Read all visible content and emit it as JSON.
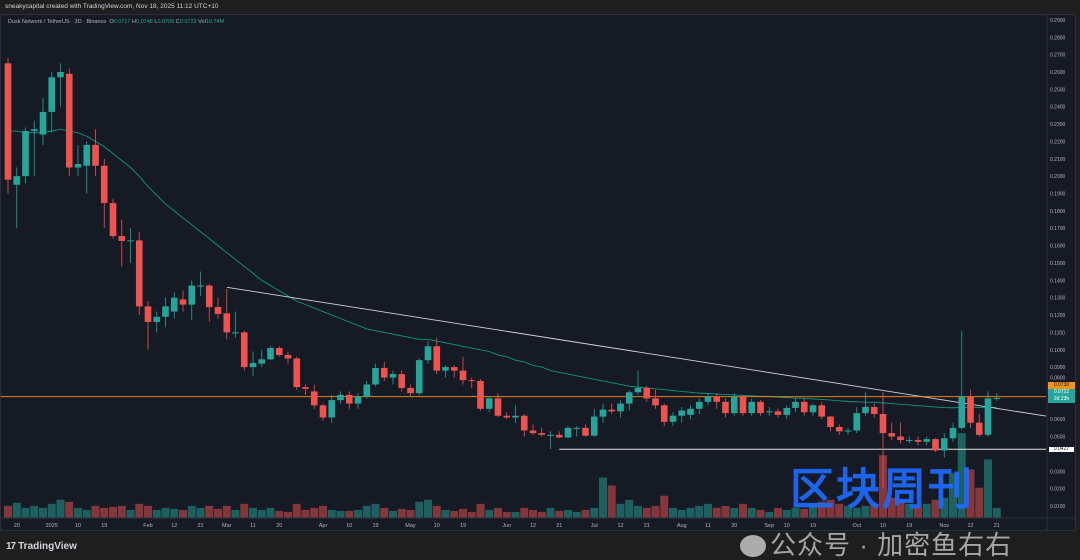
{
  "header": {
    "credit": "sneakycapital created with TradingView.com, Nov 18, 2025 11:12 UTC+10"
  },
  "legend": {
    "symbol": "Dusk Network / TetherUS · 3D · Binance",
    "o_label": "O",
    "o": "0.0717",
    "h_label": "H",
    "h": "0.0748",
    "l_label": "L",
    "l": "0.0706",
    "c_label": "C",
    "c": "0.0722",
    "vol_label": "Vol",
    "vol": "10.74M"
  },
  "price_tags": {
    "level": "0.0730",
    "last": "0.0722",
    "countdown": "2d 23h",
    "support": "0.0427"
  },
  "footer": {
    "brand": "TradingView"
  },
  "watermark": {
    "title": "区块周刊",
    "subtitle": "公众号 · 加密鱼右右"
  },
  "colors": {
    "up": "#26a69a",
    "down": "#ef5350",
    "ema": "#089981",
    "level": "#f7931a",
    "trend": "#d1d4dc",
    "bg": "#161a25"
  },
  "chart_data": {
    "type": "candlestick",
    "title": "Dusk Network / TetherUS · 3D · Binance",
    "ylim": [
      0,
      0.295
    ],
    "y_ticks": [
      "0.2900",
      "0.2800",
      "0.2700",
      "0.2600",
      "0.2500",
      "0.2400",
      "0.2300",
      "0.2200",
      "0.2100",
      "0.2000",
      "0.1900",
      "0.1800",
      "0.1700",
      "0.1600",
      "0.1500",
      "0.1400",
      "0.1300",
      "0.1200",
      "0.1100",
      "0.1000",
      "0.0900",
      "0.0800",
      "0.0600",
      "0.0500",
      "0.0300",
      "0.0200",
      "0.0100"
    ],
    "x_ticks": [
      {
        "i": 1,
        "label": "20"
      },
      {
        "i": 5,
        "label": "2025"
      },
      {
        "i": 8,
        "label": "10"
      },
      {
        "i": 11,
        "label": "19"
      },
      {
        "i": 16,
        "label": "Feb"
      },
      {
        "i": 19,
        "label": "12"
      },
      {
        "i": 22,
        "label": "21"
      },
      {
        "i": 25,
        "label": "Mar"
      },
      {
        "i": 28,
        "label": "11"
      },
      {
        "i": 31,
        "label": "20"
      },
      {
        "i": 36,
        "label": "Apr"
      },
      {
        "i": 39,
        "label": "10"
      },
      {
        "i": 42,
        "label": "19"
      },
      {
        "i": 46,
        "label": "May"
      },
      {
        "i": 49,
        "label": "10"
      },
      {
        "i": 52,
        "label": "19"
      },
      {
        "i": 57,
        "label": "Jun"
      },
      {
        "i": 60,
        "label": "12"
      },
      {
        "i": 63,
        "label": "21"
      },
      {
        "i": 67,
        "label": "Jul"
      },
      {
        "i": 70,
        "label": "12"
      },
      {
        "i": 73,
        "label": "21"
      },
      {
        "i": 77,
        "label": "Aug"
      },
      {
        "i": 80,
        "label": "11"
      },
      {
        "i": 83,
        "label": "20"
      },
      {
        "i": 87,
        "label": "Sep"
      },
      {
        "i": 89,
        "label": "10"
      },
      {
        "i": 92,
        "label": "19"
      },
      {
        "i": 97,
        "label": "Oct"
      },
      {
        "i": 100,
        "label": "10"
      },
      {
        "i": 103,
        "label": "19"
      },
      {
        "i": 107,
        "label": "Nov"
      },
      {
        "i": 110,
        "label": "12"
      },
      {
        "i": 113,
        "label": "21"
      }
    ],
    "ohlc": [
      [
        0.265,
        0.268,
        0.19,
        0.198
      ],
      [
        0.195,
        0.205,
        0.17,
        0.2
      ],
      [
        0.2,
        0.228,
        0.196,
        0.226
      ],
      [
        0.226,
        0.232,
        0.2,
        0.227
      ],
      [
        0.224,
        0.245,
        0.218,
        0.237
      ],
      [
        0.237,
        0.26,
        0.225,
        0.257
      ],
      [
        0.257,
        0.265,
        0.24,
        0.26
      ],
      [
        0.259,
        0.262,
        0.2,
        0.205
      ],
      [
        0.205,
        0.218,
        0.2,
        0.207
      ],
      [
        0.206,
        0.22,
        0.19,
        0.218
      ],
      [
        0.218,
        0.227,
        0.2,
        0.206
      ],
      [
        0.206,
        0.21,
        0.17,
        0.1845
      ],
      [
        0.1845,
        0.187,
        0.164,
        0.1655
      ],
      [
        0.1655,
        0.175,
        0.148,
        0.1627
      ],
      [
        0.163,
        0.17,
        0.15,
        0.163
      ],
      [
        0.163,
        0.168,
        0.12,
        0.125
      ],
      [
        0.125,
        0.128,
        0.1,
        0.116
      ],
      [
        0.116,
        0.122,
        0.11,
        0.119
      ],
      [
        0.119,
        0.13,
        0.113,
        0.125
      ],
      [
        0.122,
        0.133,
        0.118,
        0.13
      ],
      [
        0.129,
        0.134,
        0.122,
        0.126
      ],
      [
        0.126,
        0.14,
        0.117,
        0.137
      ],
      [
        0.137,
        0.145,
        0.131,
        0.137
      ],
      [
        0.137,
        0.138,
        0.116,
        0.1246
      ],
      [
        0.1246,
        0.13,
        0.118,
        0.1206
      ],
      [
        0.121,
        0.135,
        0.106,
        0.11
      ],
      [
        0.11,
        0.122,
        0.107,
        0.11
      ],
      [
        0.11,
        0.111,
        0.088,
        0.09
      ],
      [
        0.09,
        0.099,
        0.085,
        0.0924
      ],
      [
        0.092,
        0.1,
        0.09,
        0.0945
      ],
      [
        0.0945,
        0.102,
        0.094,
        0.101
      ],
      [
        0.101,
        0.102,
        0.096,
        0.097
      ],
      [
        0.097,
        0.099,
        0.092,
        0.095
      ],
      [
        0.095,
        0.096,
        0.077,
        0.0785
      ],
      [
        0.0785,
        0.08,
        0.074,
        0.0775
      ],
      [
        0.076,
        0.08,
        0.066,
        0.068
      ],
      [
        0.068,
        0.069,
        0.059,
        0.061
      ],
      [
        0.061,
        0.074,
        0.058,
        0.071
      ],
      [
        0.071,
        0.076,
        0.069,
        0.074
      ],
      [
        0.074,
        0.076,
        0.066,
        0.069
      ],
      [
        0.069,
        0.075,
        0.066,
        0.073
      ],
      [
        0.073,
        0.082,
        0.072,
        0.08
      ],
      [
        0.08,
        0.092,
        0.079,
        0.0895
      ],
      [
        0.0895,
        0.093,
        0.082,
        0.084
      ],
      [
        0.084,
        0.088,
        0.08,
        0.086
      ],
      [
        0.086,
        0.088,
        0.076,
        0.078
      ],
      [
        0.078,
        0.08,
        0.073,
        0.075
      ],
      [
        0.075,
        0.095,
        0.074,
        0.094
      ],
      [
        0.094,
        0.105,
        0.092,
        0.102
      ],
      [
        0.102,
        0.107,
        0.086,
        0.088
      ],
      [
        0.088,
        0.091,
        0.084,
        0.09
      ],
      [
        0.09,
        0.091,
        0.084,
        0.088
      ],
      [
        0.088,
        0.096,
        0.08,
        0.0825
      ],
      [
        0.0825,
        0.084,
        0.078,
        0.082
      ],
      [
        0.082,
        0.083,
        0.065,
        0.066
      ],
      [
        0.066,
        0.073,
        0.064,
        0.072
      ],
      [
        0.072,
        0.075,
        0.061,
        0.062
      ],
      [
        0.062,
        0.064,
        0.06,
        0.061
      ],
      [
        0.061,
        0.068,
        0.058,
        0.062
      ],
      [
        0.062,
        0.063,
        0.05,
        0.0535
      ],
      [
        0.0535,
        0.057,
        0.051,
        0.052
      ],
      [
        0.052,
        0.055,
        0.05,
        0.051
      ],
      [
        0.051,
        0.053,
        0.0428,
        0.051
      ],
      [
        0.051,
        0.053,
        0.049,
        0.0495
      ],
      [
        0.0495,
        0.056,
        0.049,
        0.055
      ],
      [
        0.055,
        0.056,
        0.05,
        0.055
      ],
      [
        0.055,
        0.057,
        0.05,
        0.0505
      ],
      [
        0.0505,
        0.066,
        0.05,
        0.0615
      ],
      [
        0.0615,
        0.069,
        0.058,
        0.0655
      ],
      [
        0.0655,
        0.069,
        0.063,
        0.0645
      ],
      [
        0.0645,
        0.071,
        0.061,
        0.069
      ],
      [
        0.069,
        0.0765,
        0.065,
        0.0755
      ],
      [
        0.0755,
        0.088,
        0.074,
        0.078
      ],
      [
        0.078,
        0.079,
        0.07,
        0.072
      ],
      [
        0.072,
        0.077,
        0.066,
        0.068
      ],
      [
        0.068,
        0.069,
        0.056,
        0.0585
      ],
      [
        0.0585,
        0.064,
        0.056,
        0.062
      ],
      [
        0.062,
        0.067,
        0.058,
        0.065
      ],
      [
        0.0625,
        0.068,
        0.06,
        0.066
      ],
      [
        0.066,
        0.072,
        0.063,
        0.07
      ],
      [
        0.07,
        0.075,
        0.068,
        0.073
      ],
      [
        0.073,
        0.075,
        0.066,
        0.07
      ],
      [
        0.07,
        0.072,
        0.061,
        0.0635
      ],
      [
        0.0635,
        0.075,
        0.062,
        0.073
      ],
      [
        0.073,
        0.074,
        0.062,
        0.0635
      ],
      [
        0.0635,
        0.072,
        0.062,
        0.07
      ],
      [
        0.07,
        0.071,
        0.062,
        0.0635
      ],
      [
        0.0645,
        0.067,
        0.062,
        0.0645
      ],
      [
        0.0645,
        0.066,
        0.061,
        0.0625
      ],
      [
        0.0625,
        0.068,
        0.06,
        0.0665
      ],
      [
        0.0665,
        0.072,
        0.064,
        0.07
      ],
      [
        0.07,
        0.072,
        0.062,
        0.064
      ],
      [
        0.064,
        0.069,
        0.062,
        0.068
      ],
      [
        0.068,
        0.07,
        0.06,
        0.0615
      ],
      [
        0.0615,
        0.062,
        0.053,
        0.0555
      ],
      [
        0.0555,
        0.057,
        0.051,
        0.053
      ],
      [
        0.053,
        0.055,
        0.051,
        0.0535
      ],
      [
        0.0535,
        0.067,
        0.052,
        0.0635
      ],
      [
        0.0635,
        0.0755,
        0.062,
        0.067
      ],
      [
        0.067,
        0.069,
        0.061,
        0.063
      ],
      [
        0.063,
        0.0755,
        0.02,
        0.052
      ],
      [
        0.052,
        0.058,
        0.048,
        0.05
      ],
      [
        0.05,
        0.058,
        0.046,
        0.048
      ],
      [
        0.048,
        0.05,
        0.046,
        0.048
      ],
      [
        0.048,
        0.05,
        0.045,
        0.047
      ],
      [
        0.047,
        0.05,
        0.045,
        0.0485
      ],
      [
        0.0485,
        0.049,
        0.041,
        0.042
      ],
      [
        0.042,
        0.052,
        0.038,
        0.049
      ],
      [
        0.049,
        0.058,
        0.047,
        0.055
      ],
      [
        0.055,
        0.111,
        0.054,
        0.073
      ],
      [
        0.073,
        0.077,
        0.055,
        0.058
      ],
      [
        0.058,
        0.063,
        0.05,
        0.051
      ],
      [
        0.051,
        0.076,
        0.05,
        0.072
      ],
      [
        0.0717,
        0.0748,
        0.0706,
        0.0722
      ]
    ],
    "volume": [
      12,
      15,
      10,
      12,
      10,
      14,
      18,
      16,
      10,
      8,
      12,
      10,
      11,
      12,
      8,
      14,
      12,
      8,
      10,
      9,
      8,
      12,
      10,
      12,
      9,
      12,
      8,
      14,
      10,
      8,
      10,
      7,
      6,
      14,
      8,
      10,
      12,
      8,
      7,
      7,
      8,
      12,
      14,
      10,
      7,
      9,
      8,
      16,
      18,
      12,
      8,
      7,
      9,
      6,
      14,
      8,
      10,
      6,
      6,
      10,
      8,
      6,
      10,
      7,
      8,
      6,
      8,
      10,
      40,
      32,
      14,
      18,
      12,
      10,
      12,
      22,
      10,
      8,
      10,
      12,
      14,
      10,
      12,
      10,
      14,
      10,
      8,
      6,
      10,
      8,
      10,
      9,
      12,
      16,
      18,
      14,
      12,
      10,
      12,
      14,
      62,
      20,
      18,
      14,
      12,
      14,
      18,
      20,
      44,
      84,
      48,
      30,
      58,
      10
    ],
    "ema": [
      0.226,
      0.226,
      0.225,
      0.225,
      0.225,
      0.226,
      0.227,
      0.226,
      0.225,
      0.223,
      0.22,
      0.217,
      0.213,
      0.209,
      0.205,
      0.2,
      0.194,
      0.189,
      0.184,
      0.18,
      0.176,
      0.172,
      0.168,
      0.164,
      0.16,
      0.156,
      0.152,
      0.148,
      0.144,
      0.14,
      0.137,
      0.134,
      0.131,
      0.128,
      0.126,
      0.124,
      0.122,
      0.12,
      0.118,
      0.116,
      0.114,
      0.112,
      0.111,
      0.11,
      0.109,
      0.108,
      0.107,
      0.106,
      0.106,
      0.105,
      0.104,
      0.103,
      0.102,
      0.101,
      0.1,
      0.099,
      0.097,
      0.096,
      0.094,
      0.093,
      0.091,
      0.09,
      0.088,
      0.087,
      0.086,
      0.085,
      0.084,
      0.083,
      0.082,
      0.081,
      0.08,
      0.079,
      0.0785,
      0.078,
      0.0775,
      0.077,
      0.0765,
      0.076,
      0.0755,
      0.075,
      0.0748,
      0.0745,
      0.0742,
      0.074,
      0.0737,
      0.0735,
      0.0732,
      0.073,
      0.0727,
      0.0725,
      0.0722,
      0.072,
      0.0717,
      0.0714,
      0.071,
      0.0706,
      0.0702,
      0.07,
      0.0698,
      0.0697,
      0.0694,
      0.069,
      0.0686,
      0.0682,
      0.0678,
      0.0674,
      0.067,
      0.0667,
      0.0666,
      0.0668,
      0.0668,
      0.0667,
      0.0667,
      0.0668
    ],
    "trendline": {
      "from": {
        "i": 25,
        "price": 0.136
      },
      "to": {
        "i": 119,
        "price": 0.0615
      }
    },
    "support_line": {
      "from_i": 63,
      "price": 0.0427
    },
    "level_line": 0.073
  }
}
